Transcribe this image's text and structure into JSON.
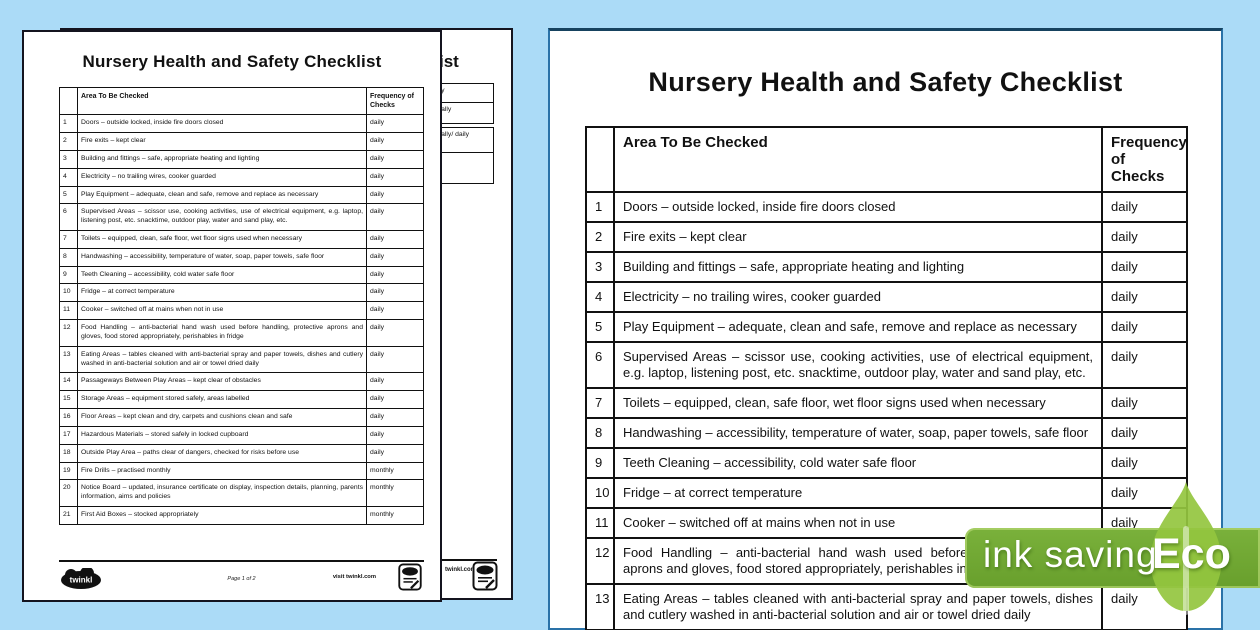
{
  "background_color": "#abdbf7",
  "doc": {
    "title": "Nursery Health and Safety Checklist",
    "table": {
      "number_header": "",
      "area_header": "Area To Be Checked",
      "freq_header": "Frequency of  Checks"
    },
    "rows": [
      {
        "n": "1",
        "area": "Doors – outside locked, inside fire doors closed",
        "freq": "daily"
      },
      {
        "n": "2",
        "area": "Fire exits – kept clear",
        "freq": "daily"
      },
      {
        "n": "3",
        "area": "Building and fittings – safe, appropriate heating and lighting",
        "freq": "daily"
      },
      {
        "n": "4",
        "area": "Electricity – no trailing wires, cooker guarded",
        "freq": "daily"
      },
      {
        "n": "5",
        "area": "Play Equipment – adequate, clean and safe, remove and replace as necessary",
        "freq": "daily"
      },
      {
        "n": "6",
        "area": "Supervised Areas – scissor use, cooking activities, use of electrical equipment, e.g. laptop, listening post, etc. snacktime, outdoor play, water and sand play, etc.",
        "freq": "daily"
      },
      {
        "n": "7",
        "area": "Toilets – equipped, clean, safe floor, wet floor signs used when necessary",
        "freq": "daily"
      },
      {
        "n": "8",
        "area": "Handwashing – accessibility, temperature of water, soap, paper towels, safe floor",
        "freq": "daily"
      },
      {
        "n": "9",
        "area": "Teeth Cleaning – accessibility, cold water safe floor",
        "freq": "daily"
      },
      {
        "n": "10",
        "area": "Fridge – at correct temperature",
        "freq": "daily"
      },
      {
        "n": "11",
        "area": "Cooker – switched off at mains when not in use",
        "freq": "daily"
      },
      {
        "n": "12",
        "area": "Food Handling – anti-bacterial hand wash used before handling, protective aprons and gloves, food stored appropriately, perishables in fridge",
        "freq": "daily"
      },
      {
        "n": "13",
        "area": "Eating Areas – tables cleaned with anti-bacterial spray and paper towels, dishes and cutlery washed in anti-bacterial solution and air or towel dried daily",
        "freq": "daily"
      },
      {
        "n": "14",
        "area": "Passageways Between Play Areas – kept clear of obstacles",
        "freq": "daily"
      },
      {
        "n": "15",
        "area": "Storage Areas – equipment stored safely, areas labelled",
        "freq": "daily"
      },
      {
        "n": "16",
        "area": "Floor Areas – kept clean and dry, carpets and cushions clean and safe",
        "freq": "daily"
      },
      {
        "n": "17",
        "area": "Hazardous Materials – stored safely in locked cupboard",
        "freq": "daily"
      },
      {
        "n": "18",
        "area": "Outside Play Area – paths clear of dangers, checked for risks before use",
        "freq": "daily"
      },
      {
        "n": "19",
        "area": "Fire Drills – practised monthly",
        "freq": "monthly"
      },
      {
        "n": "20",
        "area": "Notice Board – updated, insurance certificate on display, inspection details, planning, parents information, aims and policies",
        "freq": "monthly"
      },
      {
        "n": "21",
        "area": "First Aid Boxes – stocked appropriately",
        "freq": "monthly"
      }
    ],
    "footer": {
      "brand": "twinkl",
      "page_label": "Page 1 of 2",
      "visit_label": "visit twinkl.com"
    }
  },
  "page2": {
    "title_fragment": "ist",
    "cells": [
      "termly",
      "annually",
      "annually/ daily",
      ""
    ],
    "footer_link": "twinkl.com"
  },
  "zoomed_page": {
    "visible_rows": 14
  },
  "badge": {
    "ink_saving_label": "ink saving",
    "eco_label": "Eco",
    "banner_color": "#6fa732",
    "leaf_color": "#94c63f"
  }
}
